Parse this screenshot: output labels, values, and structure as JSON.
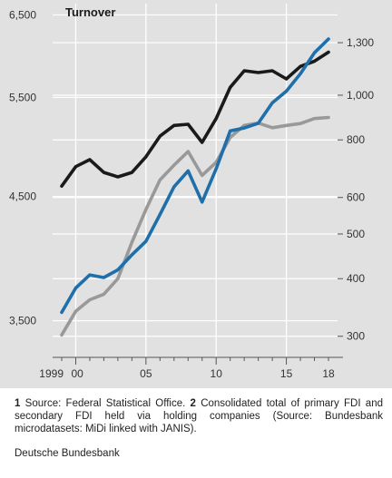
{
  "chart_data": {
    "type": "line",
    "title": "Turnover",
    "x": [
      1999,
      2000,
      2001,
      2002,
      2003,
      2004,
      2005,
      2006,
      2007,
      2008,
      2009,
      2010,
      2011,
      2012,
      2013,
      2014,
      2015,
      2016,
      2017,
      2018
    ],
    "x_tick_labels": [
      {
        "x": 1999,
        "label": "1999"
      },
      {
        "x": 2000,
        "label": "00"
      },
      {
        "x": 2005,
        "label": "05"
      },
      {
        "x": 2010,
        "label": "10"
      },
      {
        "x": 2015,
        "label": "15"
      },
      {
        "x": 2018,
        "label": "18"
      }
    ],
    "xlim": [
      1998.6,
      2018.9
    ],
    "left_axis": {
      "scale": "log",
      "ticks": [
        "6,500",
        "5,500",
        "4,500",
        "3,500"
      ],
      "tick_values": [
        6500,
        5500,
        4500,
        3500
      ],
      "range": [
        3250,
        6650
      ]
    },
    "right_axis": {
      "scale": "log",
      "ticks": [
        "1,300",
        "1,000",
        "800",
        "600",
        "500",
        "400",
        "300"
      ],
      "tick_values": [
        1300,
        1000,
        800,
        600,
        500,
        400,
        300
      ],
      "range": [
        270,
        1580
      ]
    },
    "series": [
      {
        "axis": "left",
        "color": "#1f6fab",
        "values": [
          3560,
          3740,
          3840,
          3820,
          3880,
          4000,
          4110,
          4340,
          4590,
          4740,
          4450,
          4760,
          5140,
          5170,
          5220,
          5440,
          5570,
          5770,
          6020,
          6190
        ]
      },
      {
        "axis": "right",
        "color": "#1a1a1a",
        "values": [
          635,
          700,
          725,
          680,
          665,
          680,
          735,
          815,
          860,
          865,
          790,
          890,
          1040,
          1130,
          1120,
          1130,
          1085,
          1155,
          1185,
          1240
        ]
      },
      {
        "axis": "right",
        "color": "#999999",
        "values": [
          302,
          340,
          360,
          370,
          400,
          480,
          565,
          655,
          705,
          755,
          670,
          715,
          810,
          860,
          870,
          850,
          860,
          868,
          890,
          895
        ]
      }
    ],
    "grid": "horizontal",
    "legend": "none"
  },
  "footnote": {
    "n1": "1",
    "t1": " Source: Federal Statistical Office. ",
    "n2": "2",
    "t2": " Consolidated total of primary FDI and secondary FDI held via holding companies (Source: Bundesbank microdatasets: MiDi linked with JANIS)."
  },
  "source": "Deutsche Bundesbank"
}
